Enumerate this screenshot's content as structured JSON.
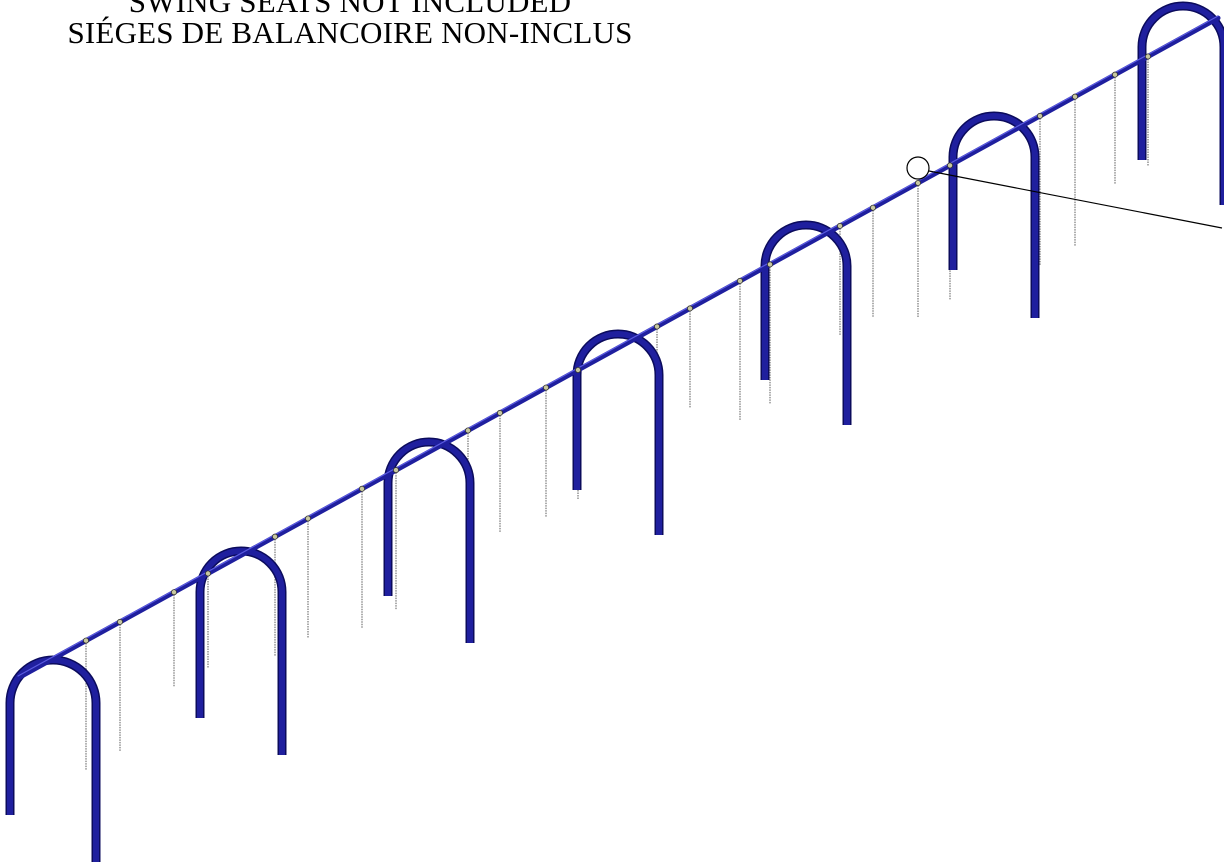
{
  "notice": {
    "line_en": "SWING SEATS NOT INCLUDED",
    "line_fr": "SIÉGES DE BALANCOIRE NON-INCLUS"
  },
  "colors": {
    "frame": "#1f1f9e",
    "frame_shadow": "#0b0b5c",
    "beam_highlight": "#5a5ae0",
    "chain": "#8a8a8a",
    "clamp": "#c8c8a0",
    "leader_line": "#000000",
    "background": "#ffffff"
  },
  "drawing": {
    "subject": "multi-bay swing frame, isometric view",
    "arch_count": 7,
    "swing_positions_per_bay": 2,
    "detail_callout": "circle-with-leader"
  }
}
